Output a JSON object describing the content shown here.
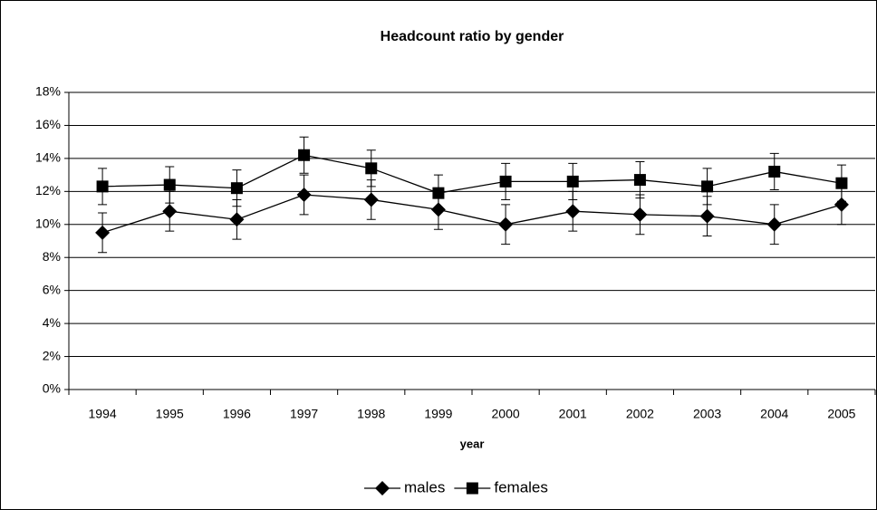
{
  "chart_data": {
    "type": "line",
    "title": "Headcount ratio by gender",
    "x_label": "year",
    "categories": [
      "1994",
      "1995",
      "1996",
      "1997",
      "1998",
      "1999",
      "2000",
      "2001",
      "2002",
      "2003",
      "2004",
      "2005"
    ],
    "series": [
      {
        "name": "males",
        "color": "#000000",
        "marker": "diamond",
        "values": [
          9.5,
          10.8,
          10.3,
          11.8,
          11.5,
          10.9,
          10.0,
          10.8,
          10.6,
          10.5,
          10.0,
          11.2
        ],
        "errors": [
          1.2,
          1.2,
          1.2,
          1.2,
          1.2,
          1.2,
          1.2,
          1.2,
          1.2,
          1.2,
          1.2,
          1.2
        ]
      },
      {
        "name": "females",
        "color": "#000000",
        "marker": "square",
        "values": [
          12.3,
          12.4,
          12.2,
          14.2,
          13.4,
          11.9,
          12.6,
          12.6,
          12.7,
          12.3,
          13.2,
          12.5
        ],
        "errors": [
          1.1,
          1.1,
          1.1,
          1.1,
          1.1,
          1.1,
          1.1,
          1.1,
          1.1,
          1.1,
          1.1,
          1.1
        ]
      }
    ],
    "ylim": [
      0,
      18
    ],
    "yticks": [
      {
        "value": 0,
        "label": "0%"
      },
      {
        "value": 2,
        "label": "2%"
      },
      {
        "value": 4,
        "label": "4%"
      },
      {
        "value": 6,
        "label": "6%"
      },
      {
        "value": 8,
        "label": "8%"
      },
      {
        "value": 10,
        "label": "10%"
      },
      {
        "value": 12,
        "label": "12%"
      },
      {
        "value": 14,
        "label": "14%"
      },
      {
        "value": 16,
        "label": "16%"
      },
      {
        "value": 18,
        "label": "18%"
      }
    ],
    "grid": true,
    "legend": "bottom"
  }
}
